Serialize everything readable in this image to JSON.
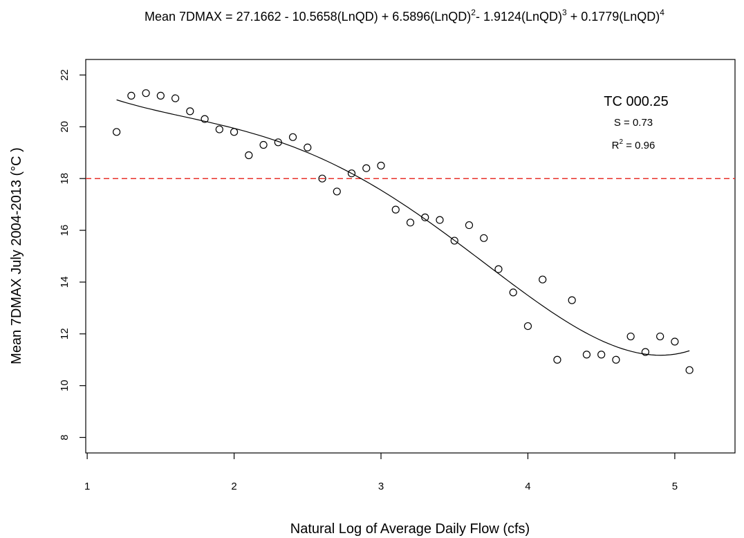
{
  "chart_data": {
    "type": "scatter",
    "title": {
      "lhs": "Mean 7DMAX = ",
      "terms": [
        {
          "text": "27.1662 - 10.5658(LnQD) + 6.5896(LnQD)",
          "sup": "2"
        },
        {
          "text": "- 1.9124(LnQD)",
          "sup": "3"
        },
        {
          "text": " + 0.1779(LnQD)",
          "sup": "4"
        }
      ]
    },
    "xlabel": "Natural Log of Average Daily Flow (cfs)",
    "ylabel": "Mean 7DMAX July 2004-2013 (°C )",
    "xlim": [
      0.99,
      5.41
    ],
    "ylim": [
      7.4,
      22.6
    ],
    "xticks": [
      1,
      2,
      3,
      4,
      5
    ],
    "yticks": [
      8,
      10,
      12,
      14,
      16,
      18,
      20,
      22
    ],
    "grid": false,
    "reference_line": {
      "y": 18,
      "color": "#e8302a",
      "style": "dashed"
    },
    "fit_coefficients": [
      27.1662,
      -10.5658,
      6.5896,
      -1.9124,
      0.1779
    ],
    "fit_range": [
      1.2,
      5.1
    ],
    "annotations": {
      "site": "TC 000.25",
      "s_label": "S = 0.73",
      "r2_prefix": "R",
      "r2_sup": "2",
      "r2_suffix": " = 0.96"
    },
    "points": [
      {
        "x": 1.2,
        "y": 19.8
      },
      {
        "x": 1.3,
        "y": 21.2
      },
      {
        "x": 1.4,
        "y": 21.3
      },
      {
        "x": 1.5,
        "y": 21.2
      },
      {
        "x": 1.6,
        "y": 21.1
      },
      {
        "x": 1.7,
        "y": 20.6
      },
      {
        "x": 1.8,
        "y": 20.3
      },
      {
        "x": 1.9,
        "y": 19.9
      },
      {
        "x": 2.0,
        "y": 19.8
      },
      {
        "x": 2.1,
        "y": 18.9
      },
      {
        "x": 2.2,
        "y": 19.3
      },
      {
        "x": 2.3,
        "y": 19.4
      },
      {
        "x": 2.4,
        "y": 19.6
      },
      {
        "x": 2.5,
        "y": 19.2
      },
      {
        "x": 2.6,
        "y": 18.0
      },
      {
        "x": 2.7,
        "y": 17.5
      },
      {
        "x": 2.8,
        "y": 18.2
      },
      {
        "x": 2.9,
        "y": 18.4
      },
      {
        "x": 3.0,
        "y": 18.5
      },
      {
        "x": 3.1,
        "y": 16.8
      },
      {
        "x": 3.2,
        "y": 16.3
      },
      {
        "x": 3.3,
        "y": 16.5
      },
      {
        "x": 3.4,
        "y": 16.4
      },
      {
        "x": 3.5,
        "y": 15.6
      },
      {
        "x": 3.6,
        "y": 16.2
      },
      {
        "x": 3.7,
        "y": 15.7
      },
      {
        "x": 3.8,
        "y": 14.5
      },
      {
        "x": 3.9,
        "y": 13.6
      },
      {
        "x": 4.0,
        "y": 12.3
      },
      {
        "x": 4.1,
        "y": 14.1
      },
      {
        "x": 4.2,
        "y": 11.0
      },
      {
        "x": 4.3,
        "y": 13.3
      },
      {
        "x": 4.4,
        "y": 11.2
      },
      {
        "x": 4.5,
        "y": 11.2
      },
      {
        "x": 4.6,
        "y": 11.0
      },
      {
        "x": 4.7,
        "y": 11.9
      },
      {
        "x": 4.8,
        "y": 11.3
      },
      {
        "x": 4.9,
        "y": 11.9
      },
      {
        "x": 5.0,
        "y": 11.7
      },
      {
        "x": 5.1,
        "y": 10.6
      }
    ]
  }
}
